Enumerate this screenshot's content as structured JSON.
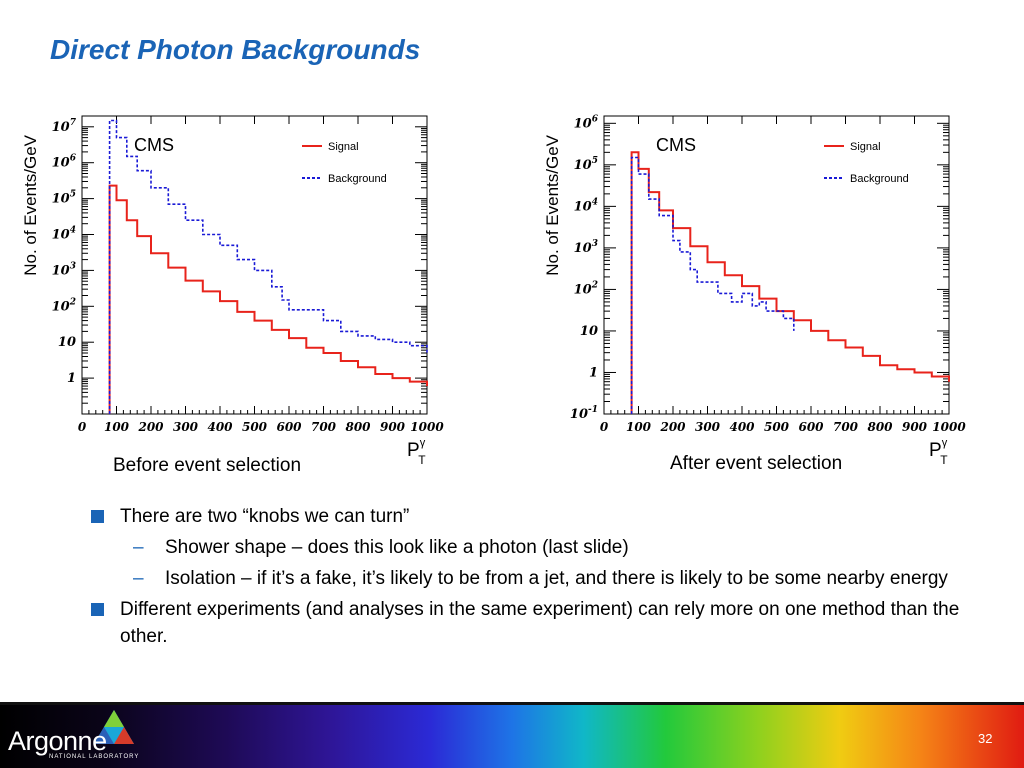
{
  "slide": {
    "title": "Direct Photon Backgrounds",
    "page_number": "32",
    "logo": {
      "name": "Argonne",
      "subtitle": "NATIONAL LABORATORY"
    }
  },
  "bullets": [
    {
      "level": 1,
      "text": "There are two “knobs we can turn”"
    },
    {
      "level": 2,
      "text": "Shower shape – does this look like a photon (last slide)"
    },
    {
      "level": 2,
      "text": "Isolation – if it’s a fake, it’s likely to be from a jet, and there is likely to be some nearby energy"
    },
    {
      "level": 1,
      "text": "Different experiments (and analyses in the same experiment) can rely more on one method than the other."
    }
  ],
  "colors": {
    "title": "#1a64b6",
    "signal": "#e8231b",
    "background": "#1a1ad6",
    "bullet": "#1a64b6"
  },
  "chart_data": [
    {
      "type": "line",
      "title": "",
      "caption": "Before event selection",
      "annotation": "CMS",
      "ylabel": "No. of Events/GeV",
      "xlabel_main": "P",
      "xlabel_sup": "γ",
      "xlabel_sub": "T",
      "xlim": [
        0,
        1000
      ],
      "ylog": true,
      "ylim": [
        0.1,
        20000000
      ],
      "x_ticks": [
        0,
        100,
        200,
        300,
        400,
        500,
        600,
        700,
        800,
        900,
        1000
      ],
      "y_ticks": [
        {
          "value": 1,
          "base": "1",
          "exp": ""
        },
        {
          "value": 10,
          "base": "10",
          "exp": ""
        },
        {
          "value": 100,
          "base": "10",
          "exp": "2"
        },
        {
          "value": 1000,
          "base": "10",
          "exp": "3"
        },
        {
          "value": 10000,
          "base": "10",
          "exp": "4"
        },
        {
          "value": 100000,
          "base": "10",
          "exp": "5"
        },
        {
          "value": 1000000,
          "base": "10",
          "exp": "6"
        },
        {
          "value": 10000000,
          "base": "10",
          "exp": "7"
        }
      ],
      "legend_position": "top-right",
      "series": [
        {
          "name": "Signal",
          "style": "solid",
          "x": [
            80,
            80,
            100,
            130,
            160,
            200,
            250,
            300,
            350,
            400,
            450,
            500,
            550,
            600,
            650,
            700,
            750,
            800,
            850,
            900,
            950,
            1000
          ],
          "y": [
            0.1,
            230000,
            90000,
            25000,
            9000,
            3000,
            1200,
            520,
            260,
            140,
            70,
            40,
            22,
            13,
            7,
            5,
            3,
            2,
            1.3,
            1,
            0.8,
            0.6
          ]
        },
        {
          "name": "Background",
          "style": "dashed",
          "x": [
            80,
            80,
            100,
            130,
            160,
            200,
            250,
            300,
            350,
            400,
            450,
            500,
            550,
            580,
            600,
            650,
            700,
            750,
            800,
            850,
            900,
            950,
            1000
          ],
          "y": [
            0.1,
            15000000,
            5000000,
            1500000,
            600000,
            200000,
            70000,
            25000,
            10000,
            5000,
            2000,
            1000,
            350,
            150,
            80,
            80,
            40,
            20,
            15,
            12,
            10,
            8,
            5
          ]
        }
      ]
    },
    {
      "type": "line",
      "title": "",
      "caption": "After event selection",
      "annotation": "CMS",
      "ylabel": "No. of Events/GeV",
      "xlabel_main": "P",
      "xlabel_sup": "γ",
      "xlabel_sub": "T",
      "xlim": [
        0,
        1000
      ],
      "ylog": true,
      "ylim": [
        0.1,
        1500000
      ],
      "x_ticks": [
        0,
        100,
        200,
        300,
        400,
        500,
        600,
        700,
        800,
        900,
        1000
      ],
      "y_ticks": [
        {
          "value": 0.1,
          "base": "10",
          "exp": "-1"
        },
        {
          "value": 1,
          "base": "1",
          "exp": ""
        },
        {
          "value": 10,
          "base": "10",
          "exp": ""
        },
        {
          "value": 100,
          "base": "10",
          "exp": "2"
        },
        {
          "value": 1000,
          "base": "10",
          "exp": "3"
        },
        {
          "value": 10000,
          "base": "10",
          "exp": "4"
        },
        {
          "value": 100000,
          "base": "10",
          "exp": "5"
        },
        {
          "value": 1000000,
          "base": "10",
          "exp": "6"
        }
      ],
      "legend_position": "top-right",
      "series": [
        {
          "name": "Signal",
          "style": "solid",
          "x": [
            80,
            80,
            100,
            130,
            160,
            200,
            250,
            300,
            350,
            400,
            450,
            500,
            550,
            600,
            650,
            700,
            750,
            800,
            850,
            900,
            950,
            1000
          ],
          "y": [
            0.1,
            200000,
            80000,
            22000,
            8000,
            3000,
            1100,
            450,
            220,
            120,
            60,
            30,
            18,
            10,
            6,
            4,
            2.5,
            1.5,
            1.2,
            1,
            0.8,
            0.6
          ]
        },
        {
          "name": "Background",
          "style": "dashed",
          "x": [
            80,
            80,
            100,
            130,
            160,
            200,
            220,
            250,
            270,
            300,
            330,
            350,
            370,
            400,
            430,
            450,
            470,
            500,
            520,
            550
          ],
          "y": [
            0.1,
            150000,
            60000,
            15000,
            6000,
            1500,
            800,
            300,
            150,
            150,
            80,
            80,
            50,
            80,
            40,
            50,
            30,
            30,
            20,
            10
          ]
        }
      ]
    }
  ]
}
